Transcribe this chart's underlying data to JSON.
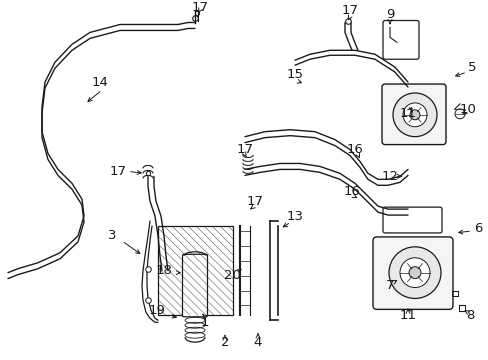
{
  "bg_color": "#ffffff",
  "line_color": "#1a1a1a",
  "figsize": [
    4.89,
    3.6
  ],
  "dpi": 100,
  "xlim": [
    0,
    489
  ],
  "ylim": [
    0,
    360
  ]
}
